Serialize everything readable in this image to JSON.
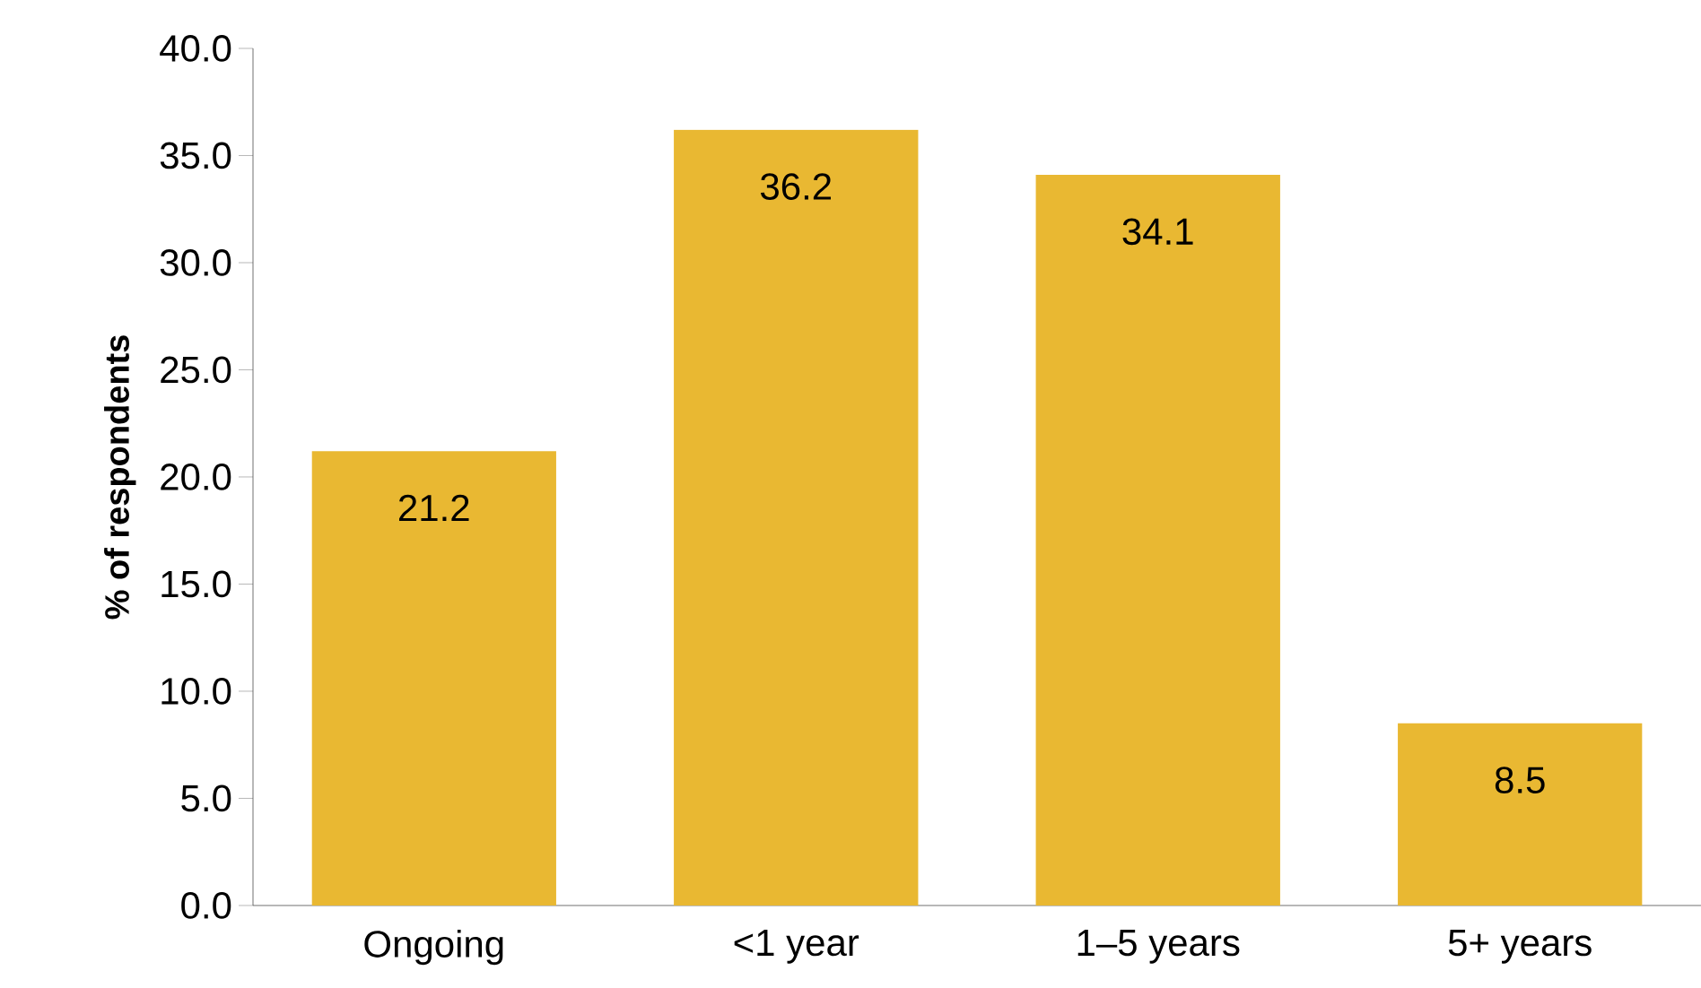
{
  "chart_data": {
    "type": "bar",
    "ylabel": "**% of respondents**",
    "categories": [
      "Ongoing",
      "<1 year",
      "1–5 years",
      "5+ years"
    ],
    "values": [
      21.2,
      36.2,
      34.1,
      8.5
    ],
    "color": "#e9b832",
    "data_labels": true,
    "ylim": [
      0,
      40
    ],
    "yticks": [
      {
        "value": 0,
        "label": "0.0"
      },
      {
        "value": 5,
        "label": "5.0"
      },
      {
        "value": 10,
        "label": "10.0"
      },
      {
        "value": 15,
        "label": "15.0"
      },
      {
        "value": 20,
        "label": "20.0"
      },
      {
        "value": 25,
        "label": "25.0"
      },
      {
        "value": 30,
        "label": "30.0"
      },
      {
        "value": 35,
        "label": "35.0"
      },
      {
        "value": 40,
        "label": "40.0"
      }
    ],
    "grid": false
  }
}
